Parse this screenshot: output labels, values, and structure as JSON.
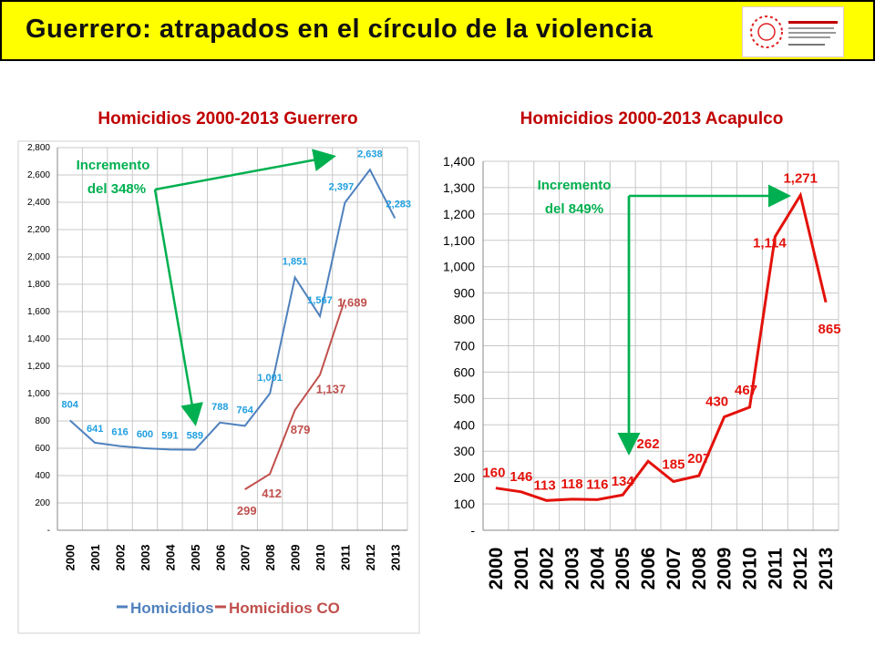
{
  "banner": {
    "title": "Guerrero: atrapados en el círculo de la violencia",
    "logo_text": "Seguridad, Justicia y Paz"
  },
  "colors": {
    "banner": "#ffff00",
    "title_red": "#c00000",
    "homicidios": "#4f81bd",
    "homicidios_label": "#1f9fe0",
    "homicidios_co": "#c0504d",
    "acapulco": "#e3120b",
    "annotation_green": "#00b050"
  },
  "chart_data": [
    {
      "type": "line",
      "title": "Homicidios 2000-2013 Guerrero",
      "categories": [
        "2000",
        "2001",
        "2002",
        "2003",
        "2004",
        "2005",
        "2006",
        "2007",
        "2008",
        "2009",
        "2010",
        "2011",
        "2012",
        "2013"
      ],
      "series": [
        {
          "name": "Homicidios",
          "values": [
            804,
            641,
            616,
            600,
            591,
            589,
            788,
            764,
            1001,
            1851,
            1567,
            2397,
            2638,
            2283
          ],
          "labels": [
            "804",
            "641",
            "616",
            "600",
            "591",
            "589",
            "788",
            "764",
            "1,001",
            "1,851",
            "1,567",
            "2,397",
            "2,638",
            "2,283"
          ]
        },
        {
          "name": "Homicidios CO",
          "values": [
            null,
            null,
            null,
            null,
            null,
            null,
            null,
            299,
            412,
            879,
            1137,
            1689,
            null,
            null
          ],
          "labels": [
            "",
            "",
            "",
            "",
            "",
            "",
            "",
            "299",
            "412",
            "879",
            "1,137",
            "1,689",
            "",
            ""
          ]
        }
      ],
      "ylim": [
        0,
        2800
      ],
      "yticks": [
        0,
        200,
        400,
        600,
        800,
        1000,
        1200,
        1400,
        1600,
        1800,
        2000,
        2200,
        2400,
        2600,
        2800
      ],
      "ytick_labels": [
        "-",
        "200",
        "400",
        "600",
        "800",
        "1,000",
        "1,200",
        "1,400",
        "1,600",
        "1,800",
        "2,000",
        "2,200",
        "2,400",
        "2,600",
        "2,800"
      ],
      "grid": true,
      "legend": "bottom",
      "annotation": {
        "line1": "Incremento",
        "line2": "del 348%"
      }
    },
    {
      "type": "line",
      "title": "Homicidios 2000-2013 Acapulco",
      "categories": [
        "2000",
        "2001",
        "2002",
        "2003",
        "2004",
        "2005",
        "2006",
        "2007",
        "2008",
        "2009",
        "2010",
        "2011",
        "2012",
        "2013"
      ],
      "series": [
        {
          "values": [
            160,
            146,
            113,
            118,
            116,
            134,
            262,
            185,
            207,
            430,
            467,
            1114,
            1271,
            865
          ],
          "labels": [
            "160",
            "146",
            "113",
            "118",
            "116",
            "134",
            "262",
            "185",
            "207",
            "430",
            "467",
            "1,114",
            "1,271",
            "865"
          ]
        }
      ],
      "ylim": [
        0,
        1400
      ],
      "yticks": [
        0,
        100,
        200,
        300,
        400,
        500,
        600,
        700,
        800,
        900,
        1000,
        1100,
        1200,
        1300,
        1400
      ],
      "ytick_labels": [
        "-",
        "100",
        "200",
        "300",
        "400",
        "500",
        "600",
        "700",
        "800",
        "900",
        "1,000",
        "1,100",
        "1,200",
        "1,300",
        "1,400"
      ],
      "grid": true,
      "annotation": {
        "line1": "Incremento",
        "line2": "del 849%"
      }
    }
  ]
}
